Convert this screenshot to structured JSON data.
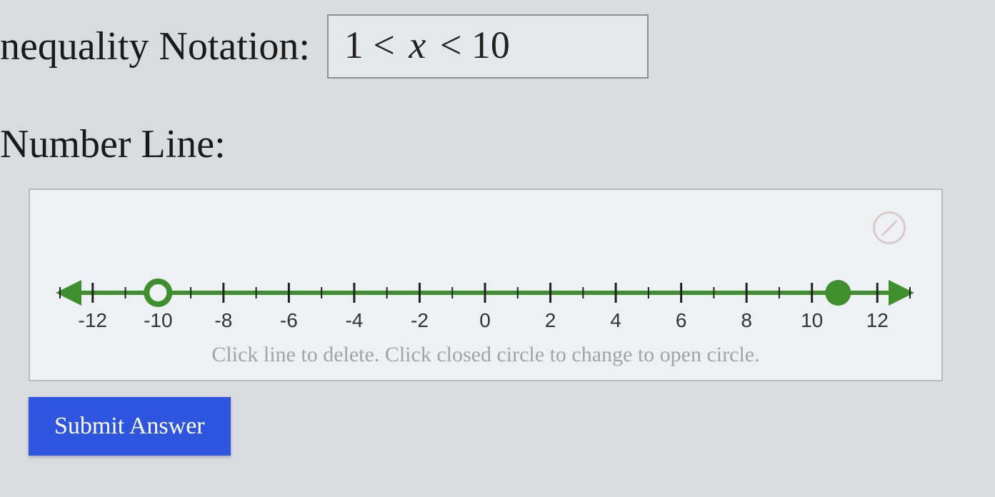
{
  "inequality": {
    "label": "nequality Notation:",
    "expression_lhs": "1",
    "expression_op1": "<",
    "expression_var": "x",
    "expression_op2": "<",
    "expression_rhs": "10"
  },
  "numberline": {
    "label": "Number Line:",
    "hint": "Click line to delete. Click closed circle to change to open circle.",
    "axis": {
      "min": -13,
      "max": 13,
      "major_ticks": [
        -12,
        -10,
        -8,
        -6,
        -4,
        -2,
        0,
        2,
        4,
        6,
        8,
        10,
        12
      ],
      "minor_step": 1,
      "line_color": "#3f8f2f",
      "line_width": 6,
      "tick_color": "#222",
      "label_color": "#333",
      "label_fontsize": 28,
      "arrow_size": 30
    },
    "points": [
      {
        "x": -10,
        "type": "open",
        "color": "#3f8f2f",
        "radius": 16,
        "ring_width": 8,
        "segment_to": "left_arrow"
      },
      {
        "x": 10.8,
        "type": "closed",
        "color": "#3f8f2f",
        "radius": 18,
        "segment_to": "right_arrow"
      }
    ]
  },
  "submit": {
    "label": "Submit Answer"
  }
}
